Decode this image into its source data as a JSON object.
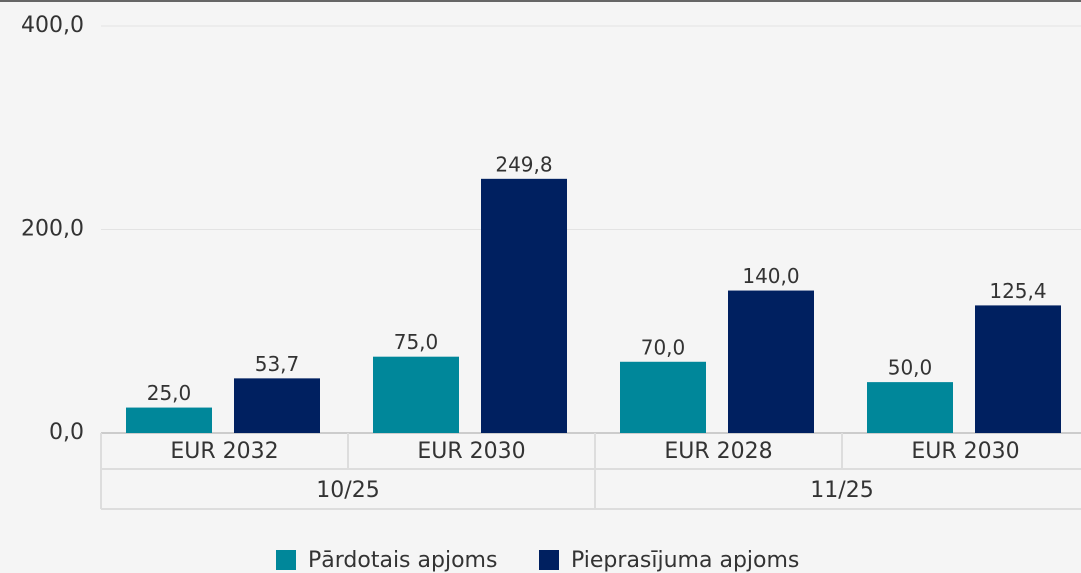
{
  "chart_data": {
    "type": "bar",
    "groups": [
      {
        "name": "10/25",
        "categories": [
          "EUR 2032",
          "EUR 2030"
        ]
      },
      {
        "name": "11/25",
        "categories": [
          "EUR 2028",
          "EUR 2030"
        ]
      }
    ],
    "series": [
      {
        "name": "Pārdotais apjoms",
        "color": "#00879a",
        "values": [
          25,
          75,
          70,
          50
        ],
        "value_labels": [
          "25,0",
          "75,0",
          "70,0",
          "50,0"
        ]
      },
      {
        "name": "Pieprasījuma apjoms",
        "color": "#002060",
        "values": [
          53.7,
          249.8,
          140,
          125.4
        ],
        "value_labels": [
          "53,7",
          "249,8",
          "140,0",
          "125,4"
        ]
      }
    ],
    "ylim": [
      0,
      400
    ],
    "yticks": [
      {
        "value": 0,
        "label": "0,0"
      },
      {
        "value": 200,
        "label": "200,0"
      },
      {
        "value": 400,
        "label": "400,0"
      }
    ],
    "grid": true,
    "legend": "bottom"
  }
}
